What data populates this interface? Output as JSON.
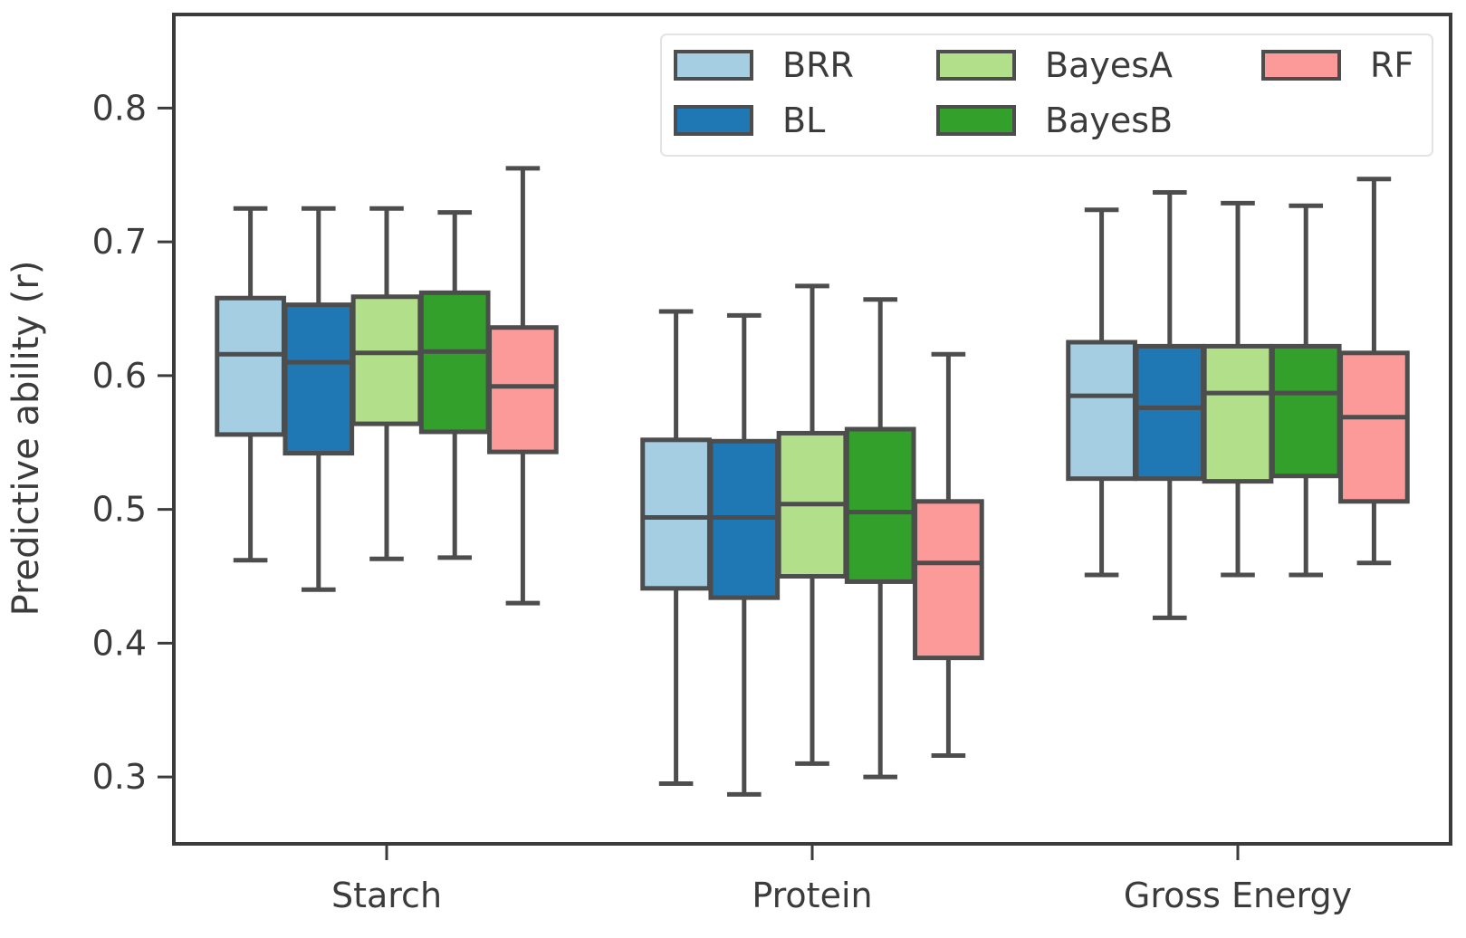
{
  "chart_data": {
    "type": "box",
    "title": "",
    "xlabel": "",
    "ylabel": "Predictive ability (r)",
    "ylim": [
      0.25,
      0.87
    ],
    "yticks": [
      0.3,
      0.4,
      0.5,
      0.6,
      0.7,
      0.8
    ],
    "ytick_labels": [
      "0.3",
      "0.4",
      "0.5",
      "0.6",
      "0.7",
      "0.8"
    ],
    "categories": [
      "Starch",
      "Protein",
      "Gross Energy"
    ],
    "legend_position": "top-right",
    "grid": false,
    "series": [
      {
        "name": "BRR",
        "color": "#a6cee3",
        "boxes": [
          {
            "whisker_low": 0.462,
            "q1": 0.556,
            "median": 0.616,
            "q3": 0.658,
            "whisker_high": 0.725
          },
          {
            "whisker_low": 0.295,
            "q1": 0.441,
            "median": 0.494,
            "q3": 0.552,
            "whisker_high": 0.648
          },
          {
            "whisker_low": 0.451,
            "q1": 0.523,
            "median": 0.585,
            "q3": 0.625,
            "whisker_high": 0.724
          }
        ]
      },
      {
        "name": "BL",
        "color": "#1f78b4",
        "boxes": [
          {
            "whisker_low": 0.44,
            "q1": 0.542,
            "median": 0.61,
            "q3": 0.653,
            "whisker_high": 0.725
          },
          {
            "whisker_low": 0.287,
            "q1": 0.434,
            "median": 0.494,
            "q3": 0.551,
            "whisker_high": 0.645
          },
          {
            "whisker_low": 0.419,
            "q1": 0.523,
            "median": 0.576,
            "q3": 0.622,
            "whisker_high": 0.737
          }
        ]
      },
      {
        "name": "BayesA",
        "color": "#b2df8a",
        "boxes": [
          {
            "whisker_low": 0.463,
            "q1": 0.564,
            "median": 0.617,
            "q3": 0.659,
            "whisker_high": 0.725
          },
          {
            "whisker_low": 0.31,
            "q1": 0.45,
            "median": 0.504,
            "q3": 0.557,
            "whisker_high": 0.667
          },
          {
            "whisker_low": 0.451,
            "q1": 0.521,
            "median": 0.587,
            "q3": 0.622,
            "whisker_high": 0.729
          }
        ]
      },
      {
        "name": "BayesB",
        "color": "#33a02c",
        "boxes": [
          {
            "whisker_low": 0.464,
            "q1": 0.558,
            "median": 0.618,
            "q3": 0.662,
            "whisker_high": 0.722
          },
          {
            "whisker_low": 0.3,
            "q1": 0.446,
            "median": 0.498,
            "q3": 0.56,
            "whisker_high": 0.657
          },
          {
            "whisker_low": 0.451,
            "q1": 0.525,
            "median": 0.587,
            "q3": 0.622,
            "whisker_high": 0.727
          }
        ]
      },
      {
        "name": "RF",
        "color": "#fb9a99",
        "boxes": [
          {
            "whisker_low": 0.43,
            "q1": 0.543,
            "median": 0.592,
            "q3": 0.636,
            "whisker_high": 0.755
          },
          {
            "whisker_low": 0.316,
            "q1": 0.389,
            "median": 0.46,
            "q3": 0.506,
            "whisker_high": 0.616
          },
          {
            "whisker_low": 0.46,
            "q1": 0.506,
            "median": 0.569,
            "q3": 0.617,
            "whisker_high": 0.747
          }
        ]
      }
    ]
  }
}
